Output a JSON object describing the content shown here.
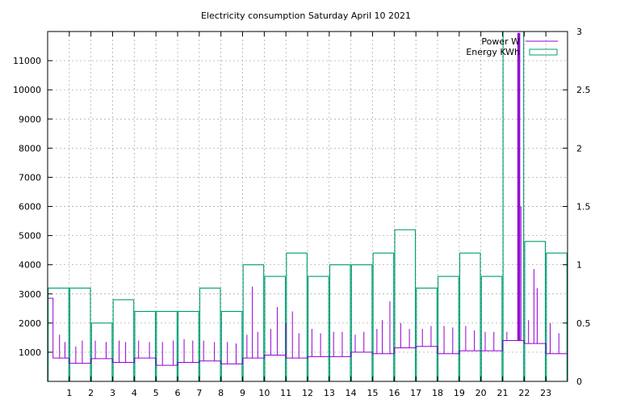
{
  "chart_data": {
    "type": "line",
    "title": "Electricity consumption Saturday April 10 2021",
    "xlabel": "",
    "ylabel": "",
    "y2label": "",
    "xlim": [
      0,
      24
    ],
    "ylim": [
      0,
      12000
    ],
    "y2lim": [
      0,
      3
    ],
    "xticks": [
      "1",
      "2",
      "3",
      "4",
      "5",
      "6",
      "7",
      "8",
      "9",
      "10",
      "11",
      "12",
      "13",
      "14",
      "15",
      "16",
      "17",
      "18",
      "19",
      "20",
      "21",
      "22",
      "23"
    ],
    "yticks": [
      1000,
      2000,
      3000,
      4000,
      5000,
      6000,
      7000,
      8000,
      9000,
      10000,
      11000
    ],
    "y2ticks": [
      "0",
      "0.5",
      "1",
      "1.5",
      "2",
      "2.5",
      "3"
    ],
    "grid": true,
    "legend_position": "top-right",
    "colors": {
      "power": "#9400d3",
      "energy": "#009e73"
    },
    "series": [
      {
        "name": "Power W",
        "axis": "left",
        "style": "steps",
        "segments": [
          {
            "start": 0.0,
            "end": 0.25,
            "base": 2850
          },
          {
            "start": 0.25,
            "end": 1.0,
            "base": 800
          },
          {
            "start": 1.0,
            "end": 2.0,
            "base": 620
          },
          {
            "start": 2.0,
            "end": 3.0,
            "base": 780
          },
          {
            "start": 3.0,
            "end": 4.0,
            "base": 650
          },
          {
            "start": 4.0,
            "end": 5.0,
            "base": 800
          },
          {
            "start": 5.0,
            "end": 6.0,
            "base": 550
          },
          {
            "start": 6.0,
            "end": 7.0,
            "base": 650
          },
          {
            "start": 7.0,
            "end": 8.0,
            "base": 700
          },
          {
            "start": 8.0,
            "end": 9.0,
            "base": 600
          },
          {
            "start": 9.0,
            "end": 10.0,
            "base": 800
          },
          {
            "start": 10.0,
            "end": 11.0,
            "base": 900
          },
          {
            "start": 11.0,
            "end": 12.0,
            "base": 800
          },
          {
            "start": 12.0,
            "end": 13.0,
            "base": 850
          },
          {
            "start": 13.0,
            "end": 14.0,
            "base": 850
          },
          {
            "start": 14.0,
            "end": 15.0,
            "base": 1000
          },
          {
            "start": 15.0,
            "end": 16.0,
            "base": 950
          },
          {
            "start": 16.0,
            "end": 17.0,
            "base": 1150
          },
          {
            "start": 17.0,
            "end": 18.0,
            "base": 1200
          },
          {
            "start": 18.0,
            "end": 19.0,
            "base": 950
          },
          {
            "start": 19.0,
            "end": 20.0,
            "base": 1050
          },
          {
            "start": 20.0,
            "end": 21.0,
            "base": 1050
          },
          {
            "start": 21.0,
            "end": 21.7,
            "base": 1400
          },
          {
            "start": 21.7,
            "end": 22.0,
            "base": 1400
          },
          {
            "start": 22.0,
            "end": 23.0,
            "base": 1300
          },
          {
            "start": 23.0,
            "end": 24.0,
            "base": 950
          }
        ],
        "spikes": [
          [
            0.55,
            1600
          ],
          [
            0.8,
            1350
          ],
          [
            1.3,
            1200
          ],
          [
            1.6,
            1400
          ],
          [
            2.2,
            1400
          ],
          [
            2.7,
            1350
          ],
          [
            3.3,
            1400
          ],
          [
            3.6,
            1350
          ],
          [
            4.2,
            1400
          ],
          [
            4.7,
            1350
          ],
          [
            5.3,
            1350
          ],
          [
            5.8,
            1400
          ],
          [
            6.3,
            1450
          ],
          [
            6.7,
            1400
          ],
          [
            7.2,
            1400
          ],
          [
            7.7,
            1350
          ],
          [
            8.3,
            1350
          ],
          [
            8.7,
            1300
          ],
          [
            9.2,
            1600
          ],
          [
            9.45,
            3250
          ],
          [
            9.7,
            1700
          ],
          [
            10.3,
            1800
          ],
          [
            10.6,
            2550
          ],
          [
            11.0,
            2000
          ],
          [
            11.3,
            2400
          ],
          [
            11.6,
            1650
          ],
          [
            12.2,
            1800
          ],
          [
            12.6,
            1650
          ],
          [
            13.2,
            1700
          ],
          [
            13.6,
            1700
          ],
          [
            14.2,
            1600
          ],
          [
            14.6,
            1700
          ],
          [
            15.2,
            1800
          ],
          [
            15.45,
            2100
          ],
          [
            15.8,
            2750
          ],
          [
            16.3,
            2000
          ],
          [
            16.7,
            1800
          ],
          [
            17.3,
            1800
          ],
          [
            17.7,
            1900
          ],
          [
            18.3,
            1900
          ],
          [
            18.7,
            1850
          ],
          [
            19.3,
            1900
          ],
          [
            19.7,
            1750
          ],
          [
            20.2,
            1700
          ],
          [
            20.6,
            1700
          ],
          [
            21.2,
            1700
          ],
          [
            21.75,
            11950
          ],
          [
            21.85,
            6000
          ],
          [
            22.2,
            2100
          ],
          [
            22.45,
            3850
          ],
          [
            22.6,
            3200
          ],
          [
            23.2,
            2000
          ],
          [
            23.6,
            1650
          ]
        ]
      },
      {
        "name": "Energy KWh",
        "axis": "right",
        "style": "boxes",
        "boxes": [
          [
            0.0,
            0.8
          ],
          [
            1.0,
            0.8
          ],
          [
            2.0,
            0.5
          ],
          [
            3.0,
            0.7
          ],
          [
            4.0,
            0.6
          ],
          [
            5.0,
            0.6
          ],
          [
            6.0,
            0.6
          ],
          [
            7.0,
            0.8
          ],
          [
            8.0,
            0.6
          ],
          [
            9.0,
            1.0
          ],
          [
            10.0,
            0.9
          ],
          [
            11.0,
            1.1
          ],
          [
            12.0,
            0.9
          ],
          [
            13.0,
            1.0
          ],
          [
            14.0,
            1.0
          ],
          [
            15.0,
            1.1
          ],
          [
            16.0,
            1.3
          ],
          [
            17.0,
            0.8
          ],
          [
            18.0,
            0.9
          ],
          [
            19.0,
            1.1
          ],
          [
            20.0,
            0.9
          ],
          [
            21.0,
            3.0
          ],
          [
            22.0,
            1.2
          ],
          [
            23.0,
            1.1
          ]
        ]
      }
    ]
  }
}
